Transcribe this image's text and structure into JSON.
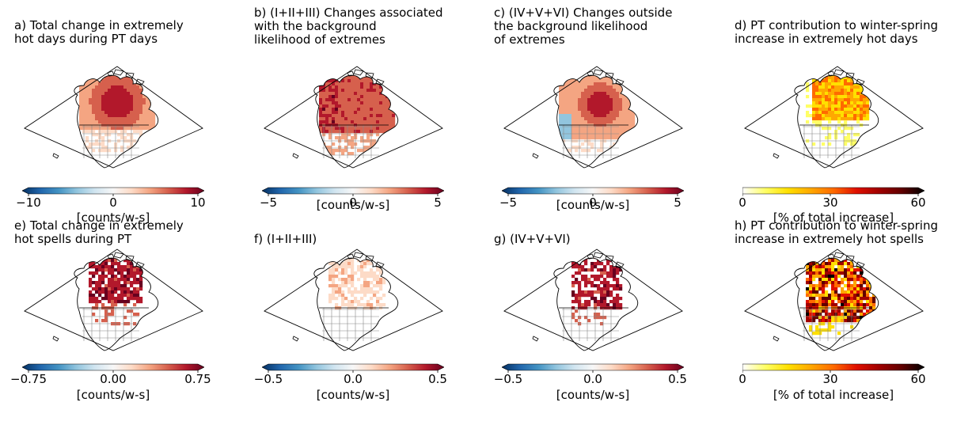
{
  "colormaps": {
    "diverging": [
      "#053061",
      "#2166ac",
      "#4393c3",
      "#92c5de",
      "#d1e5f0",
      "#f7f7f7",
      "#fddbc7",
      "#f4a582",
      "#d6604d",
      "#b2182b",
      "#67001f"
    ],
    "hot": [
      "#ffffff",
      "#ffff66",
      "#ffe000",
      "#ffa800",
      "#ff6a00",
      "#e01000",
      "#a00000",
      "#600000",
      "#000000"
    ],
    "land_line": "#000000",
    "state_line": "#888888"
  },
  "panels": [
    {
      "id": "a",
      "title": "a) Total change in extremely\nhot days during PT days",
      "map_pattern": "total_days",
      "cmap": "diverging",
      "ticks": [
        "−10",
        "0",
        "10"
      ],
      "units": "[counts/w-s]"
    },
    {
      "id": "b",
      "title": "b) (I+II+III) Changes associated\nwith the background\nlikelihood of extremes",
      "map_pattern": "background_days",
      "cmap": "diverging",
      "ticks": [
        "−5",
        "0",
        "5"
      ],
      "units": "[counts/w-s]"
    },
    {
      "id": "c",
      "title": "c) (IV+V+VI) Changes outside\nthe background likelihood\nof extremes",
      "map_pattern": "outside_days",
      "cmap": "diverging",
      "ticks": [
        "−5",
        "0",
        "5"
      ],
      "units": "[counts/w-s]"
    },
    {
      "id": "d",
      "title": "d) PT contribution to winter-spring\nincrease in extremely hot days",
      "map_pattern": "contrib_days",
      "cmap": "hot",
      "ticks": [
        "0",
        "30",
        "60"
      ],
      "units": "[% of total increase]"
    },
    {
      "id": "e",
      "title": "e) Total change in extremely\nhot spells during PT",
      "map_pattern": "total_spells",
      "cmap": "diverging",
      "ticks": [
        "−0.75",
        "0.00",
        "0.75"
      ],
      "units": "[counts/w-s]"
    },
    {
      "id": "f",
      "title": "f) (I+II+III)",
      "map_pattern": "background_spells",
      "cmap": "diverging",
      "ticks": [
        "−0.5",
        "0.0",
        "0.5"
      ],
      "units": "[counts/w-s]"
    },
    {
      "id": "g",
      "title": "g) (IV+V+VI)",
      "map_pattern": "outside_spells",
      "cmap": "diverging",
      "ticks": [
        "−0.5",
        "0.0",
        "0.5"
      ],
      "units": "[counts/w-s]"
    },
    {
      "id": "h",
      "title": "h)  PT contribution to winter-spring\nincrease in extremely hot spells",
      "map_pattern": "contrib_spells",
      "cmap": "hot",
      "ticks": [
        "0",
        "30",
        "60"
      ],
      "units": "[% of total increase]"
    }
  ]
}
